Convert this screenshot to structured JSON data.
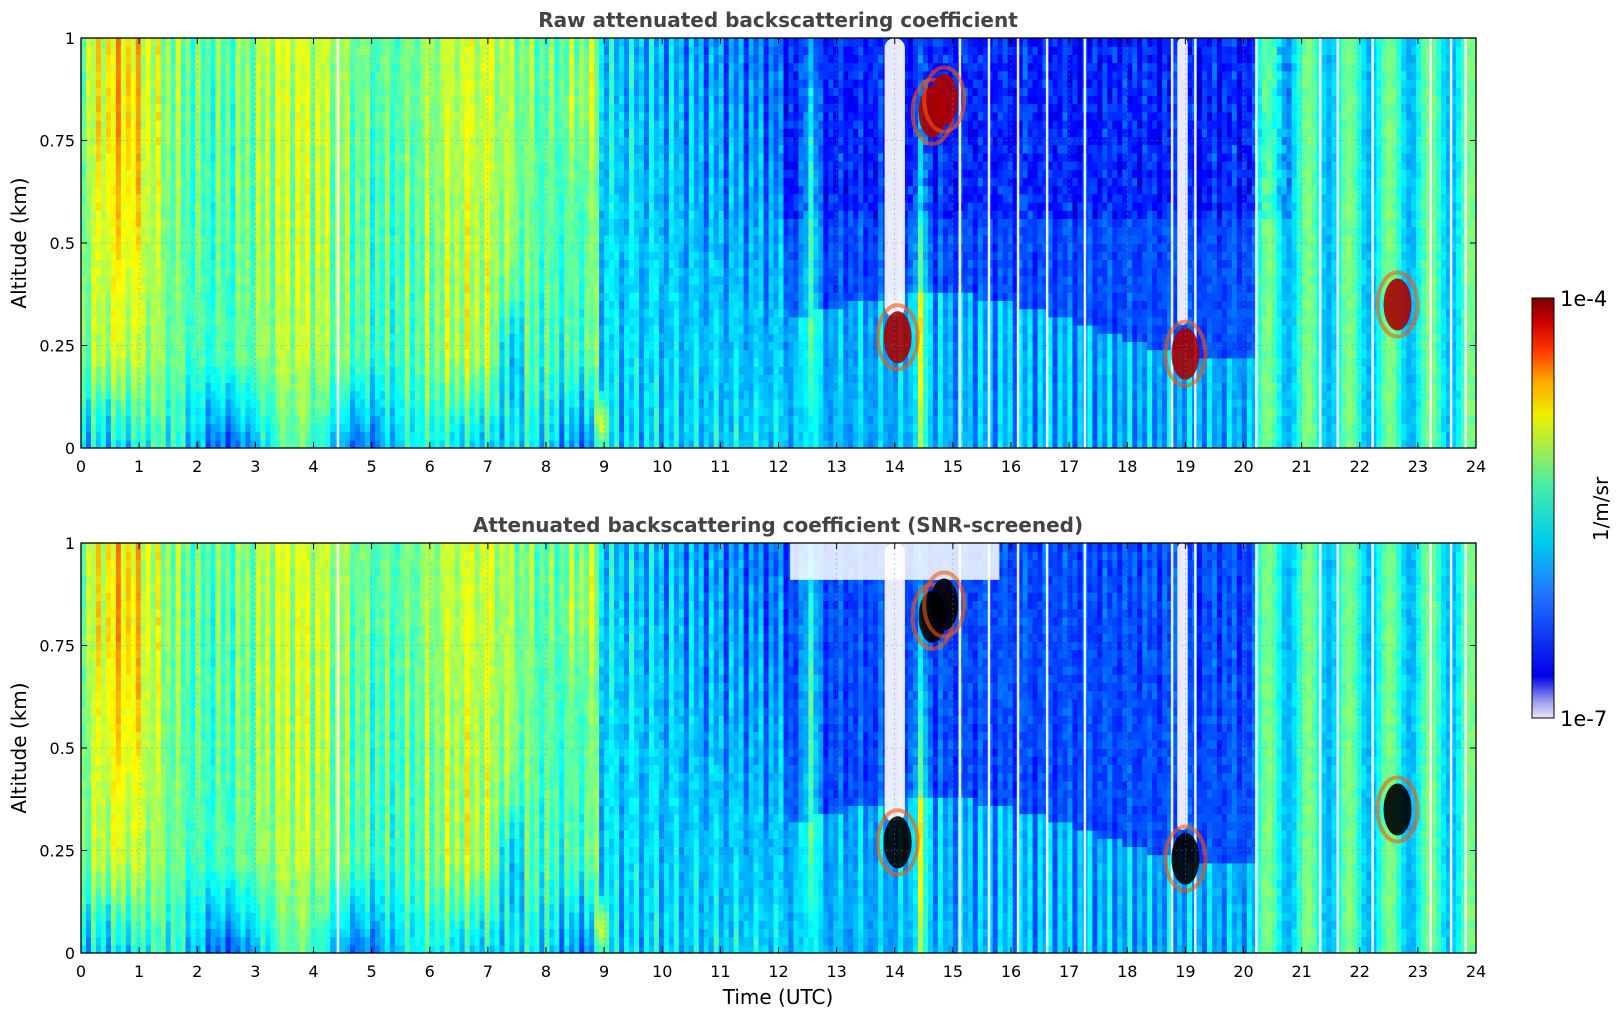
{
  "chart_data": [
    {
      "type": "heatmap",
      "title": "Raw attenuated backscattering coefficient",
      "xlabel": "",
      "ylabel": "Altitude (km)",
      "xlim": [
        0,
        24
      ],
      "ylim": [
        0,
        1
      ],
      "xticks": [
        "0",
        "1",
        "2",
        "3",
        "4",
        "5",
        "6",
        "7",
        "8",
        "9",
        "10",
        "11",
        "12",
        "13",
        "14",
        "15",
        "16",
        "17",
        "18",
        "19",
        "20",
        "21",
        "22",
        "23",
        "24"
      ],
      "yticks": [
        "0",
        "0.25",
        "0.5",
        "0.75",
        "1"
      ],
      "grid": true,
      "screened": false,
      "features": [
        {
          "kind": "cloud",
          "x": 14.05,
          "y": 0.27
        },
        {
          "kind": "cloud",
          "x": 14.65,
          "y": 0.82
        },
        {
          "kind": "cloud",
          "x": 14.85,
          "y": 0.85
        },
        {
          "kind": "cloud",
          "x": 19.0,
          "y": 0.23
        },
        {
          "kind": "cloud",
          "x": 22.65,
          "y": 0.35
        }
      ]
    },
    {
      "type": "heatmap",
      "title": "Attenuated backscattering coefficient (SNR-screened)",
      "xlabel": "Time (UTC)",
      "ylabel": "Altitude (km)",
      "xlim": [
        0,
        24
      ],
      "ylim": [
        0,
        1
      ],
      "xticks": [
        "0",
        "1",
        "2",
        "3",
        "4",
        "5",
        "6",
        "7",
        "8",
        "9",
        "10",
        "11",
        "12",
        "13",
        "14",
        "15",
        "16",
        "17",
        "18",
        "19",
        "20",
        "21",
        "22",
        "23",
        "24"
      ],
      "yticks": [
        "0",
        "0.25",
        "0.5",
        "0.75",
        "1"
      ],
      "grid": true,
      "screened": true,
      "features": [
        {
          "kind": "cloud",
          "x": 14.05,
          "y": 0.27
        },
        {
          "kind": "cloud",
          "x": 14.65,
          "y": 0.82
        },
        {
          "kind": "cloud",
          "x": 14.85,
          "y": 0.85
        },
        {
          "kind": "cloud",
          "x": 19.0,
          "y": 0.23
        },
        {
          "kind": "cloud",
          "x": 22.65,
          "y": 0.35
        }
      ]
    }
  ],
  "colorbar": {
    "label": "1/m/sr",
    "max_label": "1e-4",
    "min_label": "1e-7",
    "colormap": "jet",
    "low_color": "#e8e8f8",
    "high_color": "#800000",
    "position": "right"
  }
}
